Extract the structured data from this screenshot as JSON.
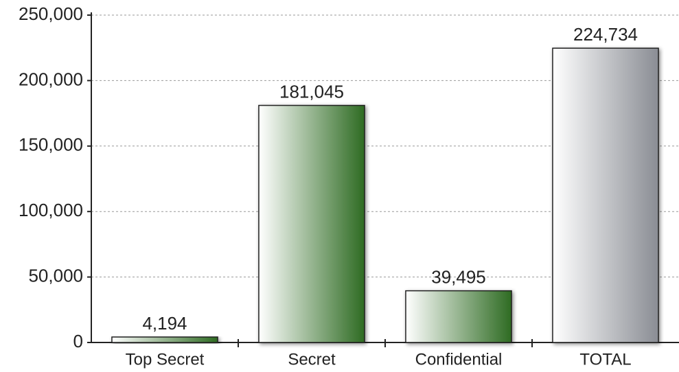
{
  "chart_data": {
    "type": "bar",
    "categories": [
      "Top Secret",
      "Secret",
      "Confidential",
      "TOTAL"
    ],
    "values": [
      4194,
      181045,
      39495,
      224734
    ],
    "value_labels": [
      "4,194",
      "181,045",
      "39,495",
      "224,734"
    ],
    "colors": [
      "#2e6b22",
      "#2e6b22",
      "#2e6b22",
      "#8a8d94"
    ],
    "ylim": [
      0,
      250000
    ],
    "yticks": [
      0,
      {
        "value": 50000,
        "label": "50,000"
      },
      {
        "value": 100000,
        "label": "100,000"
      },
      {
        "value": 150000,
        "label": "150,000"
      },
      {
        "value": 200000,
        "label": "200,000"
      },
      {
        "value": 250000,
        "label": "250,000"
      }
    ],
    "grid": true
  }
}
